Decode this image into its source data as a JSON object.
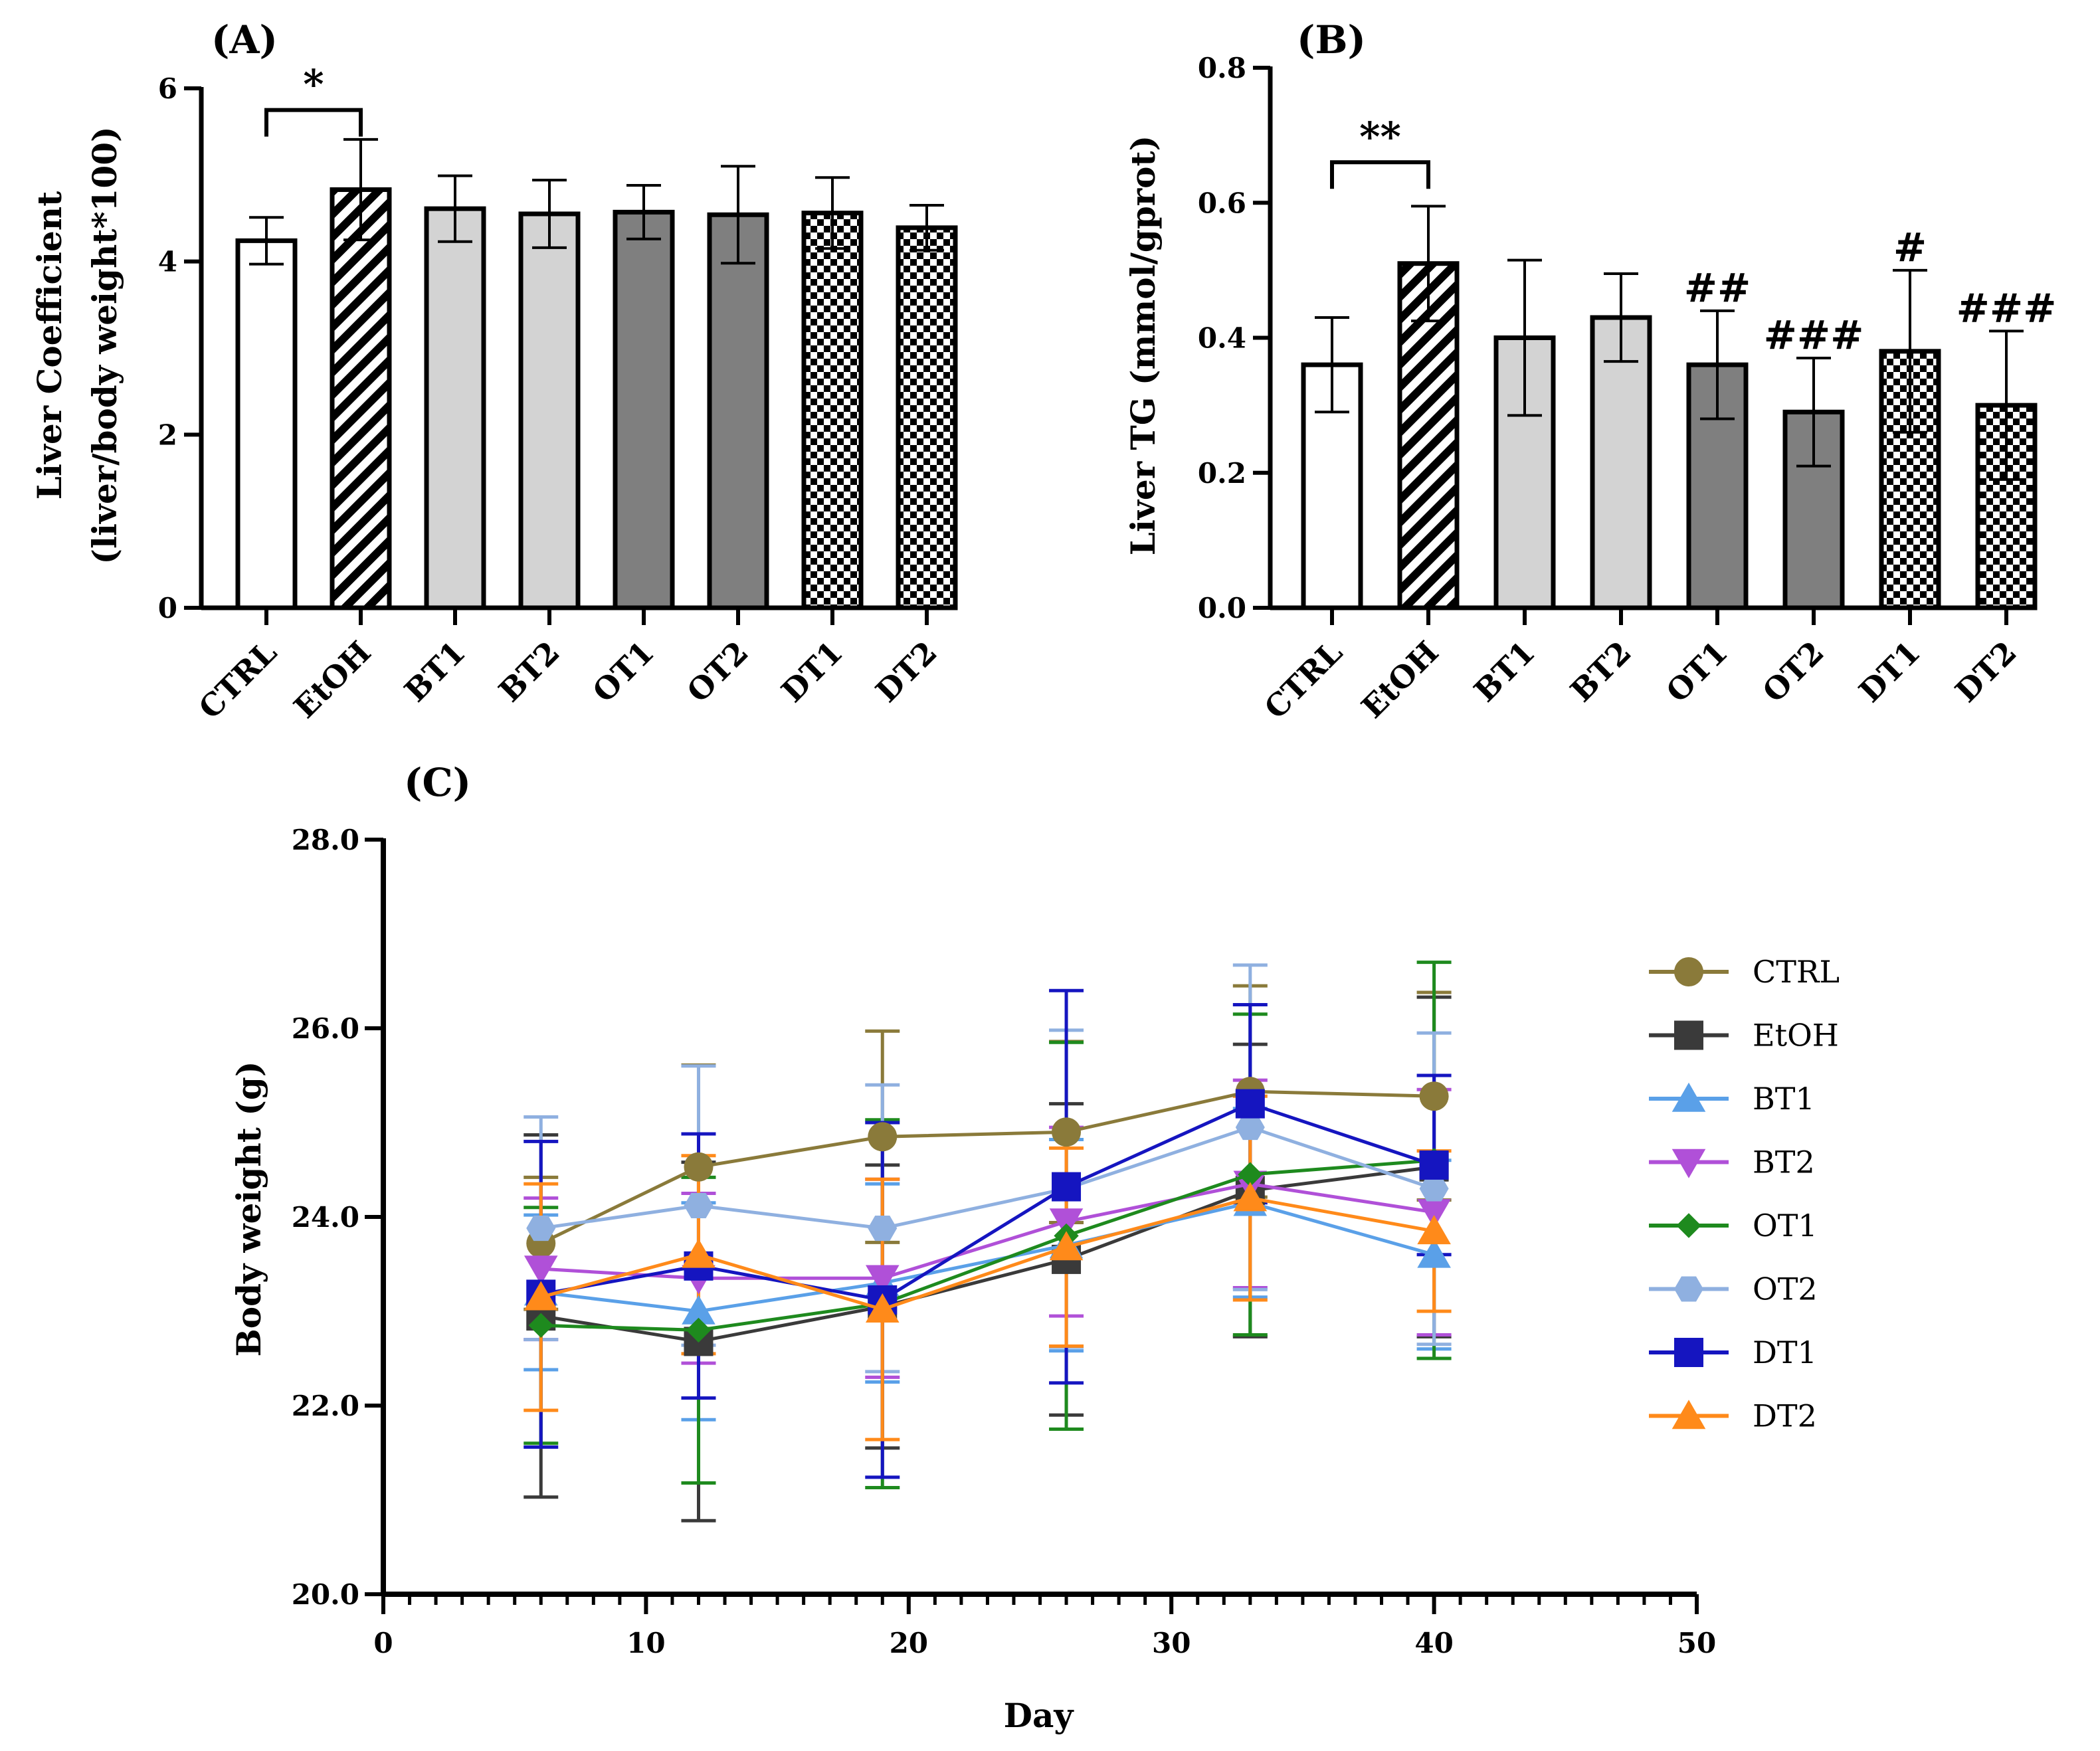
{
  "chart_data": [
    {
      "id": "A",
      "type": "bar",
      "panel_label": "(A)",
      "ylabel_line1": "Liver Coefficient",
      "ylabel_line2": "(liver/body weight*100)",
      "xlabel": "",
      "ylim": [
        0,
        6
      ],
      "yticks": [
        0,
        2,
        4,
        6
      ],
      "ytick_labels": [
        "0",
        "2",
        "4",
        "6"
      ],
      "categories": [
        "CTRL",
        "EtOH",
        "BT1",
        "BT2",
        "OT1",
        "OT2",
        "DT1",
        "DT2"
      ],
      "values": [
        4.24,
        4.83,
        4.61,
        4.55,
        4.57,
        4.54,
        4.56,
        4.39
      ],
      "errors": [
        0.27,
        0.58,
        0.38,
        0.39,
        0.31,
        0.56,
        0.41,
        0.26
      ],
      "fills": [
        "white",
        "hatch",
        "light",
        "light",
        "dark",
        "dark",
        "check",
        "check"
      ],
      "annotations": [],
      "bracket": {
        "from": 0,
        "to": 1,
        "label": "*",
        "y": 5.75
      }
    },
    {
      "id": "B",
      "type": "bar",
      "panel_label": "(B)",
      "ylabel_line1": "Liver TG (mmol/gprot)",
      "ylabel_line2": "",
      "xlabel": "",
      "ylim": [
        0,
        0.8
      ],
      "yticks": [
        0,
        0.2,
        0.4,
        0.6,
        0.8
      ],
      "ytick_labels": [
        "0.0",
        "0.2",
        "0.4",
        "0.6",
        "0.8"
      ],
      "categories": [
        "CTRL",
        "EtOH",
        "BT1",
        "BT2",
        "OT1",
        "OT2",
        "DT1",
        "DT2"
      ],
      "values": [
        0.36,
        0.51,
        0.4,
        0.43,
        0.36,
        0.29,
        0.38,
        0.3
      ],
      "errors": [
        0.07,
        0.085,
        0.115,
        0.065,
        0.08,
        0.08,
        0.12,
        0.11
      ],
      "fills": [
        "white",
        "hatch",
        "light",
        "light",
        "dark",
        "dark",
        "check",
        "check"
      ],
      "annotations": [
        "",
        "",
        "",
        "",
        "##",
        "###",
        "#",
        "###"
      ],
      "bracket": {
        "from": 0,
        "to": 1,
        "label": "**",
        "y": 0.66
      }
    },
    {
      "id": "C",
      "type": "line",
      "panel_label": "(C)",
      "xlabel": "Day",
      "ylabel": "Body weight (g)",
      "xlim": [
        0,
        50
      ],
      "ylim": [
        20,
        28
      ],
      "xticks": [
        0,
        10,
        20,
        30,
        40,
        50
      ],
      "xtick_labels": [
        "0",
        "10",
        "20",
        "30",
        "40",
        "50"
      ],
      "yticks": [
        20,
        22,
        24,
        26,
        28
      ],
      "ytick_labels": [
        "20.0",
        "22.0",
        "24.0",
        "26.0",
        "28.0"
      ],
      "x": [
        6,
        12,
        19,
        26,
        33,
        40
      ],
      "series": [
        {
          "name": "CTRL",
          "color": "#8a7a3a",
          "marker": "circle",
          "values": [
            23.72,
            24.53,
            24.85,
            24.9,
            25.33,
            25.28
          ],
          "errors": [
            0.7,
            1.08,
            1.12,
            0.96,
            1.12,
            1.1
          ]
        },
        {
          "name": "EtOH",
          "color": "#3a3a3a",
          "marker": "square",
          "values": [
            22.95,
            22.68,
            23.05,
            23.55,
            24.28,
            24.53
          ],
          "errors": [
            1.92,
            1.9,
            1.5,
            1.65,
            1.55,
            1.8
          ]
        },
        {
          "name": "BT1",
          "color": "#5aa0e8",
          "marker": "triangle",
          "values": [
            23.2,
            23.0,
            23.3,
            23.7,
            24.15,
            23.6
          ],
          "errors": [
            0.82,
            1.15,
            1.05,
            1.12,
            1.0,
            1.0
          ]
        },
        {
          "name": "BT2",
          "color": "#b050d8",
          "marker": "triangle-down",
          "values": [
            23.45,
            23.35,
            23.35,
            23.95,
            24.35,
            24.05
          ],
          "errors": [
            0.75,
            0.9,
            1.05,
            1.0,
            1.1,
            1.3
          ]
        },
        {
          "name": "OT1",
          "color": "#1e8a1e",
          "marker": "diamond",
          "values": [
            22.85,
            22.8,
            23.08,
            23.8,
            24.45,
            24.6
          ],
          "errors": [
            1.25,
            1.62,
            1.95,
            2.05,
            1.7,
            2.1
          ]
        },
        {
          "name": "OT2",
          "color": "#8fb0e0",
          "marker": "hexagon",
          "values": [
            23.88,
            24.12,
            23.88,
            24.3,
            24.95,
            24.3
          ],
          "errors": [
            1.18,
            1.48,
            1.52,
            1.68,
            1.72,
            1.65
          ]
        },
        {
          "name": "DT1",
          "color": "#1515c0",
          "marker": "square",
          "values": [
            23.18,
            23.48,
            23.12,
            24.32,
            25.2,
            24.55
          ],
          "errors": [
            1.62,
            1.4,
            1.88,
            2.08,
            1.05,
            0.95
          ]
        },
        {
          "name": "DT2",
          "color": "#ff8a1a",
          "marker": "triangle",
          "values": [
            23.15,
            23.6,
            23.02,
            23.68,
            24.2,
            23.85
          ],
          "errors": [
            1.2,
            1.05,
            1.38,
            1.05,
            1.08,
            0.85
          ]
        }
      ]
    }
  ]
}
